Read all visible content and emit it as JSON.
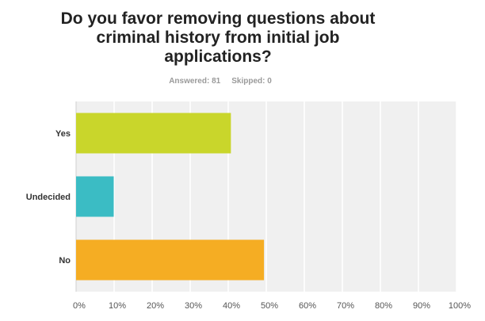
{
  "chart_data": {
    "type": "bar",
    "orientation": "horizontal",
    "title": "Do you favor removing questions about criminal history from initial job applications?",
    "answered_label": "Answered: 81",
    "skipped_label": "Skipped: 0",
    "categories": [
      "Yes",
      "Undecided",
      "No"
    ],
    "values": [
      40.7,
      9.9,
      49.4
    ],
    "colors": [
      "#c9d62b",
      "#3bbcc4",
      "#f5ad23"
    ],
    "xlim": [
      0,
      100
    ],
    "x_ticks": [
      "0%",
      "10%",
      "20%",
      "30%",
      "40%",
      "50%",
      "60%",
      "70%",
      "80%",
      "90%",
      "100%"
    ],
    "grid": true,
    "plot_background": "#f0f0f0"
  }
}
